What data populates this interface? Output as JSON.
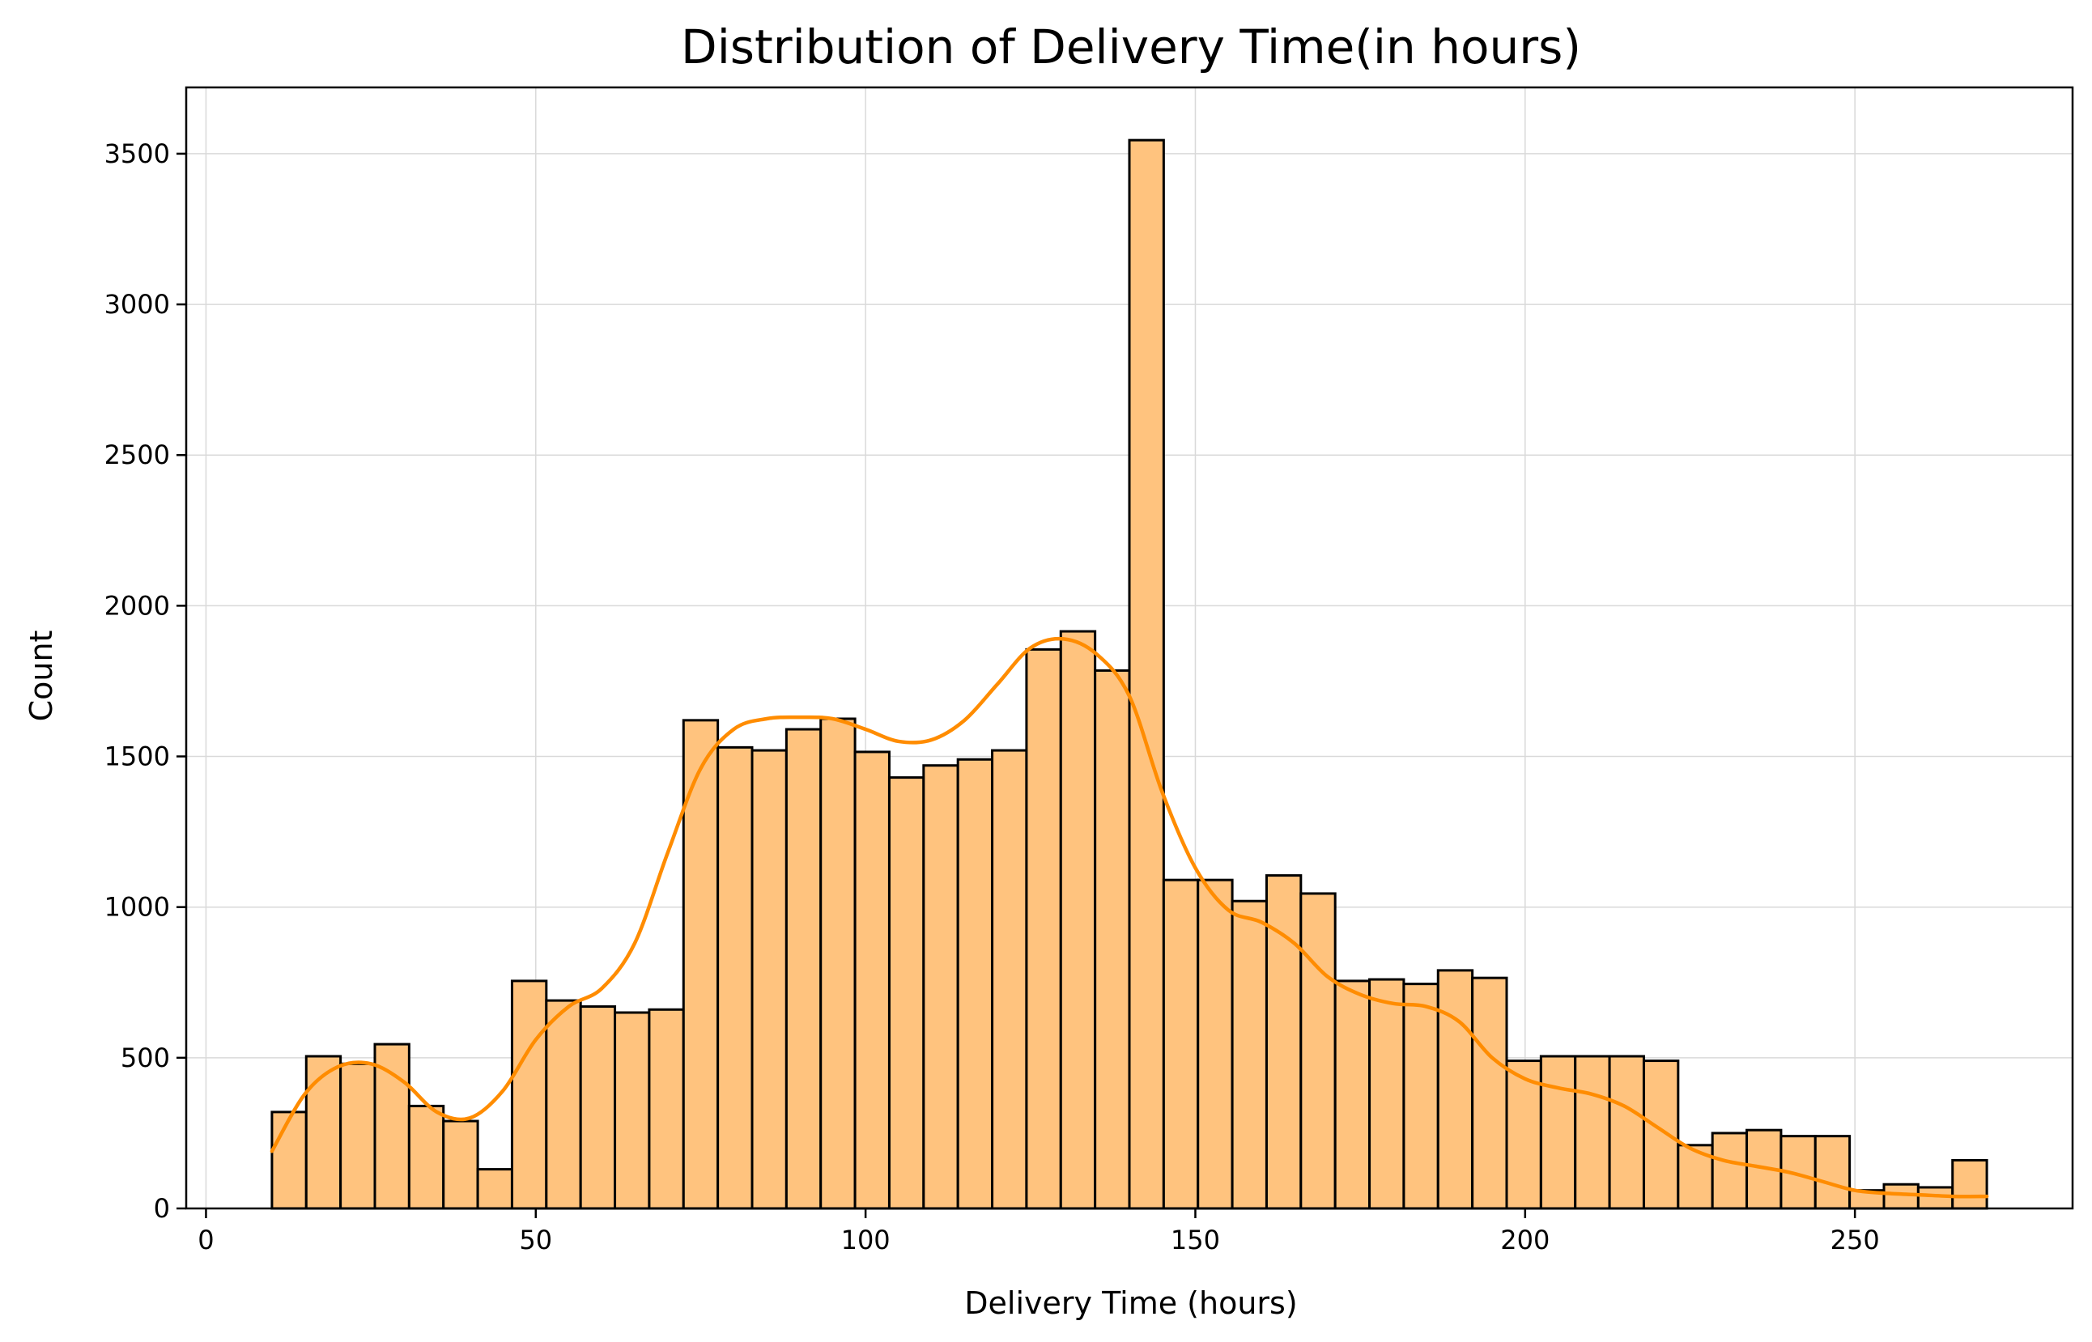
{
  "chart_data": {
    "type": "bar",
    "subtype": "histogram_with_kde",
    "title": "Distribution of Delivery Time(in hours)",
    "xlabel": "Delivery Time (hours)",
    "ylabel": "Count",
    "xlim": [
      -3,
      283
    ],
    "ylim": [
      0,
      3720
    ],
    "xticks": [
      0,
      50,
      100,
      150,
      200,
      250
    ],
    "yticks": [
      0,
      500,
      1000,
      1500,
      2000,
      2500,
      3000,
      3500
    ],
    "grid": true,
    "bin_edges": [
      10,
      15.2,
      20.4,
      25.6,
      30.8,
      36,
      41.2,
      46.4,
      51.6,
      56.8,
      62,
      67.2,
      72.4,
      77.6,
      82.8,
      88,
      93.2,
      98.4,
      103.6,
      108.8,
      114,
      119.2,
      124.4,
      129.6,
      134.8,
      140,
      145.2,
      150.4,
      155.6,
      160.8,
      166,
      171.2,
      176.4,
      181.6,
      186.8,
      192,
      197.2,
      202.4,
      207.6,
      212.8,
      218,
      223.2,
      228.4,
      233.6,
      238.8,
      244,
      249.2,
      254.4,
      259.6,
      264.8,
      270
    ],
    "counts": [
      320,
      505,
      480,
      545,
      340,
      290,
      130,
      755,
      690,
      670,
      650,
      660,
      1620,
      1530,
      1520,
      1590,
      1625,
      1515,
      1430,
      1470,
      1490,
      1520,
      1855,
      1915,
      1785,
      3545,
      1090,
      1090,
      1020,
      1105,
      1045,
      755,
      760,
      745,
      790,
      765,
      490,
      505,
      505,
      505,
      490,
      210,
      250,
      260,
      240,
      240,
      60,
      80,
      70,
      160
    ],
    "kde": {
      "x": [
        10,
        15,
        20,
        25,
        30,
        35,
        40,
        45,
        50,
        55,
        60,
        65,
        70,
        75,
        80,
        85,
        90,
        95,
        100,
        105,
        110,
        115,
        120,
        125,
        130,
        135,
        140,
        145,
        150,
        155,
        160,
        165,
        170,
        175,
        180,
        185,
        190,
        195,
        200,
        205,
        210,
        215,
        220,
        225,
        230,
        235,
        240,
        245,
        250,
        255,
        260,
        265,
        270
      ],
      "y": [
        190,
        380,
        470,
        480,
        420,
        320,
        300,
        390,
        560,
        670,
        730,
        880,
        1180,
        1460,
        1590,
        1625,
        1630,
        1625,
        1590,
        1550,
        1555,
        1620,
        1740,
        1860,
        1890,
        1840,
        1700,
        1380,
        1130,
        990,
        950,
        880,
        770,
        710,
        680,
        670,
        620,
        500,
        430,
        400,
        380,
        340,
        270,
        200,
        160,
        140,
        120,
        90,
        60,
        50,
        45,
        40,
        40
      ]
    },
    "colors": {
      "bar_fill": "#ffc37e",
      "bar_edge": "#000000",
      "kde_line": "#ff8c00"
    }
  }
}
